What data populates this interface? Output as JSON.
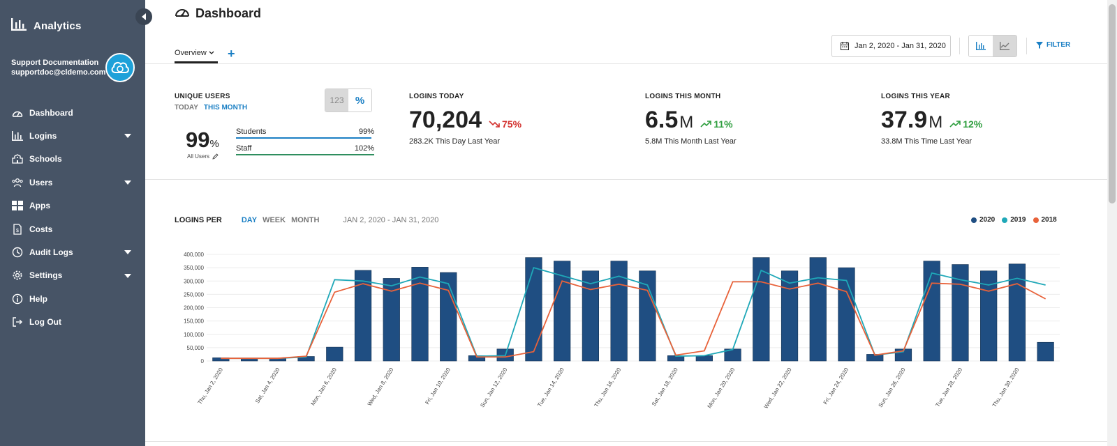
{
  "sidebar": {
    "brand": "Analytics",
    "user_name": "Support Documentation",
    "user_email": "supportdoc@cldemo.com",
    "items": [
      {
        "label": "Dashboard",
        "icon": "gauge-icon",
        "has_caret": false
      },
      {
        "label": "Logins",
        "icon": "bar-chart-icon",
        "has_caret": true
      },
      {
        "label": "Schools",
        "icon": "school-icon",
        "has_caret": false
      },
      {
        "label": "Users",
        "icon": "users-icon",
        "has_caret": true
      },
      {
        "label": "Apps",
        "icon": "grid-icon",
        "has_caret": false
      },
      {
        "label": "Costs",
        "icon": "invoice-icon",
        "has_caret": false
      },
      {
        "label": "Audit Logs",
        "icon": "clock-icon",
        "has_caret": true
      },
      {
        "label": "Settings",
        "icon": "gear-icon",
        "has_caret": true
      },
      {
        "label": "Help",
        "icon": "info-icon",
        "has_caret": false
      },
      {
        "label": "Log Out",
        "icon": "logout-icon",
        "has_caret": false
      }
    ]
  },
  "header": {
    "title": "Dashboard",
    "tab_overview": "Overview",
    "tab_add": "+",
    "date_range": "Jan 2, 2020 - Jan 31, 2020",
    "filter_label": "FILTER"
  },
  "unique_users": {
    "label": "UNIQUE USERS",
    "today": "TODAY",
    "this_month": "THIS MONTH",
    "toggle_number": "123",
    "toggle_percent": "%",
    "big_value": "99",
    "big_unit": "%",
    "all_users_label": "All Users",
    "rows": [
      {
        "label": "Students",
        "value": "99%"
      },
      {
        "label": "Staff",
        "value": "102%"
      }
    ]
  },
  "kpis": [
    {
      "label": "LOGINS TODAY",
      "value": "70,204",
      "unit": "",
      "delta": "75%",
      "direction": "down",
      "sub": "283.2K This Day Last Year"
    },
    {
      "label": "LOGINS THIS MONTH",
      "value": "6.5",
      "unit": "M",
      "delta": "11%",
      "direction": "up",
      "sub": "5.8M This Month Last Year"
    },
    {
      "label": "LOGINS THIS YEAR",
      "value": "37.9",
      "unit": "M",
      "delta": "12%",
      "direction": "up",
      "sub": "33.8M This Time Last Year"
    }
  ],
  "chart_header": {
    "title": "LOGINS PER",
    "granularity": [
      "DAY",
      "WEEK",
      "MONTH"
    ],
    "active": "DAY",
    "range": "JAN 2, 2020 - JAN 31, 2020"
  },
  "colors": {
    "s2020": "#1f4e82",
    "s2019": "#1fa8b8",
    "s2018": "#e8623a",
    "accent": "#1a7fc4"
  },
  "chart_data": {
    "type": "bar",
    "title": "",
    "xlabel": "",
    "ylabel": "",
    "ylim": [
      0,
      400000
    ],
    "yticks": [
      "0",
      "50,000",
      "100,000",
      "150,000",
      "200,000",
      "250,000",
      "300,000",
      "350,000",
      "400,000"
    ],
    "categories": [
      "Thu, Jan 2, 2020",
      "Fri, Jan 3, 2020",
      "Sat, Jan 4, 2020",
      "Sun, Jan 5, 2020",
      "Mon, Jan 6, 2020",
      "Tue, Jan 7, 2020",
      "Wed, Jan 8, 2020",
      "Thu, Jan 9, 2020",
      "Fri, Jan 10, 2020",
      "Sat, Jan 11, 2020",
      "Sun, Jan 12, 2020",
      "Mon, Jan 13, 2020",
      "Tue, Jan 14, 2020",
      "Wed, Jan 15, 2020",
      "Thu, Jan 16, 2020",
      "Fri, Jan 17, 2020",
      "Sat, Jan 18, 2020",
      "Sun, Jan 19, 2020",
      "Mon, Jan 20, 2020",
      "Tue, Jan 21, 2020",
      "Wed, Jan 22, 2020",
      "Thu, Jan 23, 2020",
      "Fri, Jan 24, 2020",
      "Sat, Jan 25, 2020",
      "Sun, Jan 26, 2020",
      "Mon, Jan 27, 2020",
      "Tue, Jan 28, 2020",
      "Wed, Jan 29, 2020",
      "Thu, Jan 30, 2020",
      "Fri, Jan 31, 2020"
    ],
    "label_every": 2,
    "legend_position": "top-right",
    "series": [
      {
        "name": "2020",
        "type": "bar",
        "values": [
          12000,
          10000,
          10000,
          17000,
          52000,
          340000,
          310000,
          352000,
          332000,
          20000,
          45000,
          388000,
          375000,
          338000,
          375000,
          338000,
          20000,
          20000,
          45000,
          388000,
          338000,
          388000,
          350000,
          25000,
          45000,
          375000,
          362000,
          338000,
          364000,
          70000
        ]
      },
      {
        "name": "2019",
        "type": "line",
        "values": [
          10000,
          10000,
          10000,
          15000,
          305000,
          300000,
          282000,
          315000,
          290000,
          18000,
          20000,
          350000,
          320000,
          290000,
          318000,
          285000,
          18000,
          20000,
          43000,
          340000,
          292000,
          312000,
          302000,
          22000,
          35000,
          330000,
          305000,
          285000,
          310000,
          285000
        ]
      },
      {
        "name": "2018",
        "type": "line",
        "values": [
          10000,
          10000,
          10000,
          18000,
          258000,
          290000,
          262000,
          292000,
          265000,
          15000,
          15000,
          35000,
          300000,
          268000,
          288000,
          265000,
          22000,
          38000,
          297000,
          297000,
          270000,
          292000,
          260000,
          22000,
          38000,
          292000,
          288000,
          262000,
          290000,
          233000
        ]
      }
    ]
  }
}
